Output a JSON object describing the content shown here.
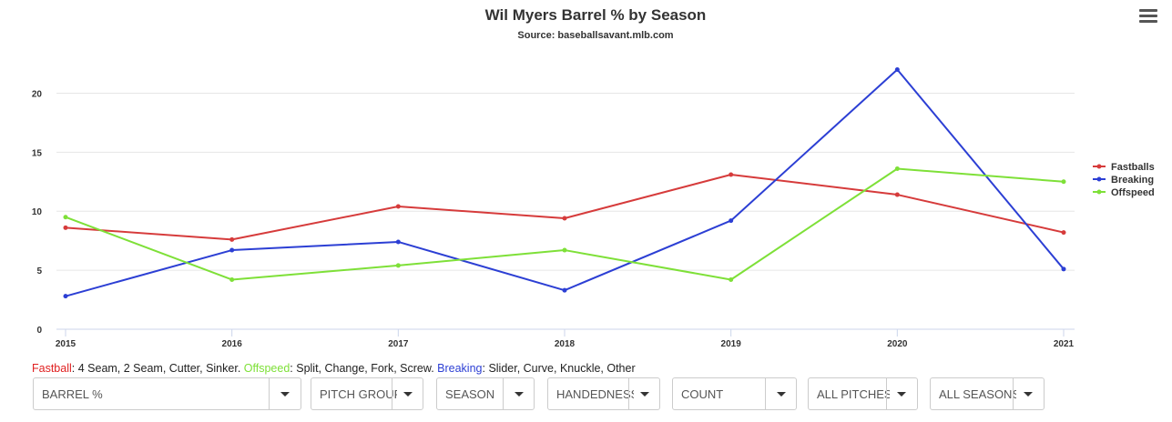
{
  "chart_data": {
    "type": "line",
    "title": "Wil Myers Barrel % by Season",
    "subtitle": "Source: baseballsavant.mlb.com",
    "categories": [
      "2015",
      "2016",
      "2017",
      "2018",
      "2019",
      "2020",
      "2021"
    ],
    "y_ticks": [
      0,
      5,
      10,
      15,
      20
    ],
    "ylim": [
      0,
      22.5
    ],
    "xlabel": "",
    "ylabel": "",
    "grid": true,
    "legend_position": "right",
    "series": [
      {
        "name": "Fastballs",
        "color": "#d63b3b",
        "values": [
          8.6,
          7.6,
          10.4,
          9.4,
          13.1,
          11.4,
          8.2
        ]
      },
      {
        "name": "Breaking",
        "color": "#2c3fd4",
        "values": [
          2.8,
          6.7,
          7.4,
          3.3,
          9.2,
          22.0,
          5.1
        ]
      },
      {
        "name": "Offspeed",
        "color": "#7ee038",
        "values": [
          9.5,
          4.2,
          5.4,
          6.7,
          4.2,
          13.6,
          12.5
        ]
      }
    ]
  },
  "menu": {
    "icon": "hamburger-menu-icon"
  },
  "footnote": {
    "fastball_label": "Fastball",
    "fastball_desc": ": 4 Seam, 2 Seam, Cutter, Sinker. ",
    "offspeed_label": "Offspeed",
    "offspeed_desc": ": Split, Change, Fork, Screw. ",
    "breaking_label": "Breaking",
    "breaking_desc": ": Slider, Curve, Knuckle, Other",
    "colors": {
      "fastball": "#e02020",
      "offspeed": "#7ee038",
      "breaking": "#2c3fd4"
    }
  },
  "controls": [
    {
      "label": "BARREL %"
    },
    {
      "label": "PITCH GROUP"
    },
    {
      "label": "SEASON"
    },
    {
      "label": "HANDEDNESS"
    },
    {
      "label": "COUNT"
    },
    {
      "label": "ALL PITCHES"
    },
    {
      "label": "ALL SEASONS"
    }
  ]
}
